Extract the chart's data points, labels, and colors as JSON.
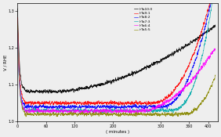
{
  "title": "",
  "xlabel": "( minutes )",
  "ylabel": "V / RHE",
  "xlim": [
    0,
    420
  ],
  "ylim": [
    1.0,
    1.32
  ],
  "yticks": [
    1.0,
    1.1,
    1.2,
    1.3
  ],
  "xtick_vals": [
    0,
    60,
    120,
    200,
    300,
    360,
    400
  ],
  "legend": [
    {
      "label": "IrTa10:0",
      "color": "#000000"
    },
    {
      "label": "IrTa9:1",
      "color": "#ff0000"
    },
    {
      "label": "IrTa8:2",
      "color": "#0000ff"
    },
    {
      "label": "IrTa7:3",
      "color": "#00aaaa"
    },
    {
      "label": "IrTa6:4",
      "color": "#ff00ff"
    },
    {
      "label": "irTa5:5",
      "color": "#888800"
    }
  ],
  "background_color": "#eeeeee"
}
